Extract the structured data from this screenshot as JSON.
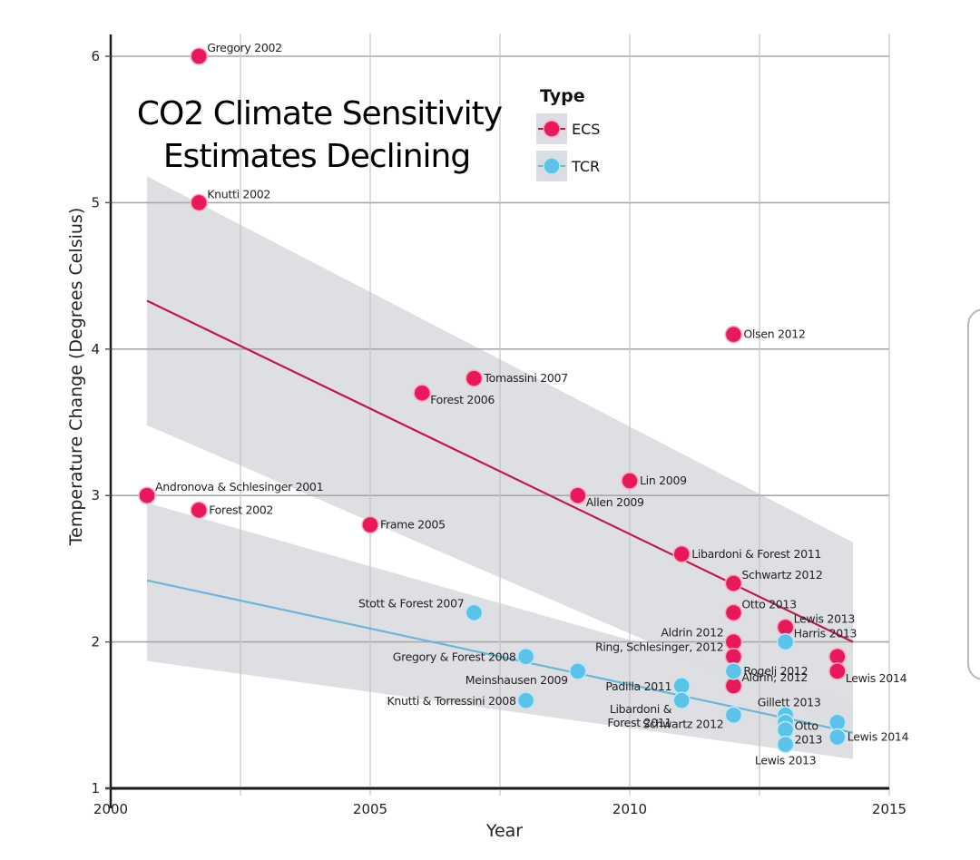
{
  "chart_data": {
    "type": "scatter",
    "title": "CO2 Climate Sensitivity Estimates Declining",
    "title_lines": [
      "CO2 Climate Sensitivity",
      "Estimates Declining"
    ],
    "xlabel": "Year",
    "ylabel": "Temperature Change (Degrees Celsius)",
    "xlim": [
      2000,
      2015
    ],
    "ylim": [
      1,
      6
    ],
    "xticks": [
      2000,
      2005,
      2010,
      2015
    ],
    "xtick_labels": [
      "2000",
      "2005",
      "2010",
      "2015"
    ],
    "yticks": [
      1,
      2,
      3,
      4,
      5,
      6
    ],
    "ytick_labels": [
      "1",
      "2",
      "3",
      "4",
      "5",
      "6"
    ],
    "x_minor_grid": [
      2002.5,
      2007.5,
      2012.5
    ],
    "grid": true,
    "legend": {
      "title": "Type",
      "placement": "top-center",
      "entries": [
        {
          "name": "ECS",
          "color": "#e8185a"
        },
        {
          "name": "TCR",
          "color": "#5bc3e8"
        }
      ]
    },
    "series": [
      {
        "name": "ECS",
        "color": "#e8185a",
        "trend_color": "#c2184f",
        "trend": {
          "x": [
            2000.7,
            2014.3
          ],
          "y": [
            4.33,
            2.0
          ]
        },
        "band": {
          "x": [
            2000.7,
            2014.3
          ],
          "upper": [
            5.18,
            2.68
          ],
          "lower": [
            3.48,
            1.4
          ]
        },
        "points": [
          {
            "x": 2000.7,
            "y": 3.0,
            "label": "Andronova & Schlesinger 2001",
            "anchor": "tr"
          },
          {
            "x": 2001.7,
            "y": 6.0,
            "label": "Gregory 2002",
            "anchor": "tr"
          },
          {
            "x": 2001.7,
            "y": 5.0,
            "label": "Knutti 2002",
            "anchor": "tr"
          },
          {
            "x": 2001.7,
            "y": 2.9,
            "label": "Forest 2002",
            "anchor": "r"
          },
          {
            "x": 2005.0,
            "y": 2.8,
            "label": "Frame 2005",
            "anchor": "r"
          },
          {
            "x": 2006.0,
            "y": 3.7,
            "label": "Forest 2006",
            "anchor": "br"
          },
          {
            "x": 2007.0,
            "y": 3.8,
            "label": "Tomassini 2007",
            "anchor": "r"
          },
          {
            "x": 2009.0,
            "y": 3.0,
            "label": "Allen 2009",
            "anchor": "br"
          },
          {
            "x": 2010.0,
            "y": 3.1,
            "label": "Lin 2009",
            "anchor": "r"
          },
          {
            "x": 2011.0,
            "y": 2.6,
            "label": "Libardoni & Forest 2011",
            "anchor": "r"
          },
          {
            "x": 2012.0,
            "y": 4.1,
            "label": "Olsen 2012",
            "anchor": "r"
          },
          {
            "x": 2012.0,
            "y": 2.4,
            "label": "Schwartz 2012",
            "anchor": "tr"
          },
          {
            "x": 2012.0,
            "y": 2.2,
            "label": "Otto 2013",
            "anchor": "tr"
          },
          {
            "x": 2012.0,
            "y": 2.0,
            "label": "Aldrin 2012",
            "anchor": "tl"
          },
          {
            "x": 2012.0,
            "y": 1.9,
            "label": "Ring, Schlesinger, 2012",
            "anchor": "tl"
          },
          {
            "x": 2012.0,
            "y": 1.7,
            "label": "Aldrin, 2012",
            "anchor": "tr"
          },
          {
            "x": 2013.0,
            "y": 2.1,
            "label": "Lewis 2013",
            "anchor": "tr"
          },
          {
            "x": 2014.0,
            "y": 1.9,
            "label": "",
            "anchor": "r"
          },
          {
            "x": 2014.0,
            "y": 1.8,
            "label": "Lewis 2014",
            "anchor": "br"
          }
        ]
      },
      {
        "name": "TCR",
        "color": "#5bc3e8",
        "trend_color": "#6ab8d6",
        "trend": {
          "x": [
            2000.7,
            2014.3
          ],
          "y": [
            2.42,
            1.38
          ]
        },
        "band": {
          "x": [
            2000.7,
            2014.3
          ],
          "upper": [
            2.95,
            1.58
          ],
          "lower": [
            1.87,
            1.2
          ]
        },
        "points": [
          {
            "x": 2007.0,
            "y": 2.2,
            "label": "Stott & Forest 2007",
            "anchor": "tl"
          },
          {
            "x": 2008.0,
            "y": 1.9,
            "label": "Gregory & Forest 2008",
            "anchor": "l"
          },
          {
            "x": 2009.0,
            "y": 1.8,
            "label": "Meinshausen 2009",
            "anchor": "bl"
          },
          {
            "x": 2008.0,
            "y": 1.6,
            "label": "Knutti & Torressini 2008",
            "anchor": "l"
          },
          {
            "x": 2011.0,
            "y": 1.7,
            "label": "Padilla 2011",
            "anchor": "l"
          },
          {
            "x": 2011.0,
            "y": 1.6,
            "label": "Libardoni & Forest 2011",
            "anchor": "bl2"
          },
          {
            "x": 2012.0,
            "y": 1.8,
            "label": "Rogelj 2012",
            "anchor": "r"
          },
          {
            "x": 2012.0,
            "y": 1.5,
            "label": "Schwartz 2012",
            "anchor": "bl"
          },
          {
            "x": 2013.0,
            "y": 2.0,
            "label": "Harris 2013",
            "anchor": "tr"
          },
          {
            "x": 2013.0,
            "y": 1.5,
            "label": "Gillett 2013",
            "anchor": "t"
          },
          {
            "x": 2013.0,
            "y": 1.45,
            "label": "",
            "anchor": "r"
          },
          {
            "x": 2013.0,
            "y": 1.4,
            "label": "Otto 2013",
            "anchor": "r2"
          },
          {
            "x": 2013.0,
            "y": 1.3,
            "label": "Lewis 2013",
            "anchor": "b"
          },
          {
            "x": 2014.0,
            "y": 1.45,
            "label": "",
            "anchor": "r"
          },
          {
            "x": 2014.0,
            "y": 1.35,
            "label": "Lewis 2014",
            "anchor": "r"
          }
        ]
      }
    ]
  }
}
